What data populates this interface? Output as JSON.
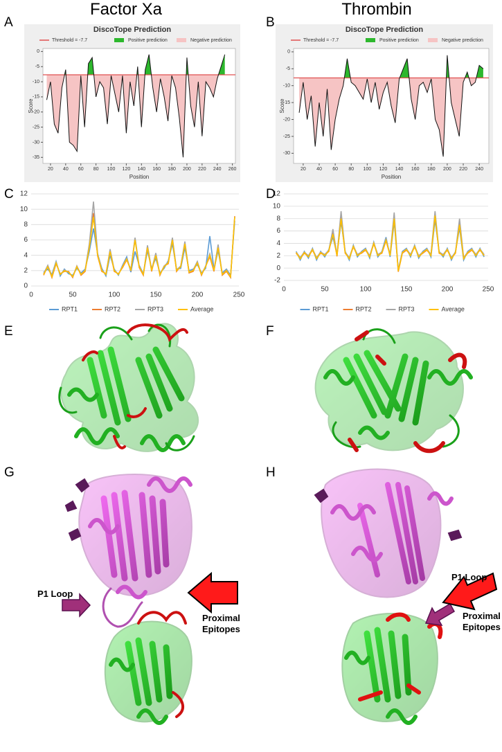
{
  "column_titles": [
    "Factor Xa",
    "Thrombin"
  ],
  "panel_labels": [
    "A",
    "B",
    "C",
    "D",
    "E",
    "F",
    "G",
    "H"
  ],
  "annotations": {
    "g_p1_loop": "P1 Loop",
    "g_epitopes": "Proximal Epitopes",
    "h_p1_loop": "P1 Loop",
    "h_epitopes": "Proximal Epitopes"
  },
  "chart_data": [
    {
      "type": "area",
      "title": "DiscoTope Prediction",
      "x_label": "Position",
      "y_label": "Score",
      "threshold": {
        "value": -7.7,
        "label": "Threshold = -7.7"
      },
      "threshold_color": "#e05050",
      "positive_label": "Positive prediction",
      "positive_color": "#2db82d",
      "negative_label": "Negative prediction",
      "negative_color": "#f6c4c4",
      "line_color": "#111111",
      "x": [
        15,
        20,
        25,
        30,
        35,
        40,
        45,
        50,
        55,
        60,
        65,
        70,
        75,
        80,
        85,
        90,
        95,
        100,
        105,
        110,
        115,
        120,
        125,
        130,
        135,
        140,
        145,
        150,
        155,
        160,
        165,
        170,
        175,
        180,
        185,
        190,
        195,
        200,
        205,
        210,
        215,
        220,
        225,
        230,
        235,
        240,
        245,
        250
      ],
      "values": [
        -16,
        -10,
        -24,
        -27,
        -12,
        -6,
        -30,
        -31,
        -33,
        -8,
        -25,
        -4,
        -2,
        -15,
        -10,
        -12,
        -24,
        -8,
        -14,
        -20,
        -8,
        -27,
        -10,
        -18,
        -5,
        -25,
        -6,
        -1,
        -12,
        -20,
        -9,
        -15,
        -23,
        -8,
        -12,
        -22,
        -35,
        -2,
        -18,
        -25,
        -10,
        -28,
        -10,
        -12,
        -15,
        -9,
        -5,
        -1
      ],
      "xlim": [
        10,
        264
      ],
      "xticks": [
        20,
        40,
        60,
        80,
        100,
        120,
        140,
        160,
        180,
        200,
        220,
        240,
        260
      ],
      "ylim": [
        -37,
        1
      ],
      "yticks": [
        0,
        -5,
        -10,
        -15,
        -20,
        -25,
        -30,
        -35
      ]
    },
    {
      "type": "area",
      "title": "DiscoTope Prediction",
      "x_label": "Position",
      "y_label": "Score",
      "threshold": {
        "value": -7.7,
        "label": "Threshold = -7.7"
      },
      "threshold_color": "#e05050",
      "positive_label": "Positive prediction",
      "positive_color": "#2db82d",
      "negative_label": "Negative prediction",
      "negative_color": "#f6c4c4",
      "line_color": "#111111",
      "x": [
        15,
        20,
        25,
        30,
        35,
        40,
        45,
        50,
        55,
        60,
        65,
        70,
        75,
        80,
        85,
        90,
        95,
        100,
        105,
        110,
        115,
        120,
        125,
        130,
        135,
        140,
        145,
        150,
        155,
        160,
        165,
        170,
        175,
        180,
        185,
        190,
        195,
        200,
        205,
        210,
        215,
        220,
        225,
        230,
        235,
        240,
        245
      ],
      "values": [
        -18,
        -9,
        -20,
        -13,
        -28,
        -15,
        -25,
        -11,
        -29,
        -20,
        -14,
        -10,
        -2,
        -9,
        -10,
        -12,
        -14,
        -8,
        -15,
        -9,
        -17,
        -12,
        -9,
        -16,
        -21,
        -8,
        -5,
        -2,
        -14,
        -20,
        -10,
        -9,
        -12,
        -8,
        -20,
        -23,
        -31,
        -1,
        -15,
        -20,
        -25,
        -9,
        -6,
        -10,
        -9,
        -4,
        -5
      ],
      "xlim": [
        8,
        252
      ],
      "xticks": [
        20,
        40,
        60,
        80,
        100,
        120,
        140,
        160,
        180,
        200,
        220,
        240
      ],
      "ylim": [
        -33,
        1
      ],
      "yticks": [
        0,
        -5,
        -10,
        -15,
        -20,
        -25,
        -30
      ]
    },
    {
      "type": "line",
      "grid": true,
      "x": [
        15,
        20,
        25,
        30,
        35,
        40,
        45,
        50,
        55,
        60,
        65,
        70,
        75,
        80,
        85,
        90,
        95,
        100,
        105,
        110,
        115,
        120,
        125,
        130,
        135,
        140,
        145,
        150,
        155,
        160,
        165,
        170,
        175,
        180,
        185,
        190,
        195,
        200,
        205,
        210,
        215,
        220,
        225,
        230,
        235,
        240,
        245
      ],
      "series": [
        {
          "name": "RPT1",
          "color": "#5b9bd5",
          "values": [
            1.8,
            2.2,
            1.5,
            3.2,
            1.3,
            2.2,
            1.6,
            1.4,
            2.3,
            1.7,
            2.2,
            4.5,
            7.5,
            4.2,
            2.3,
            1.3,
            4.0,
            2.2,
            1.4,
            2.7,
            3.8,
            1.8,
            4.5,
            2.7,
            1.6,
            4.6,
            2.3,
            3.6,
            1.7,
            2.3,
            3.3,
            5.5,
            2.2,
            2.3,
            5.0,
            2.0,
            2.2,
            2.8,
            1.7,
            2.3,
            6.5,
            2.2,
            4.6,
            1.7,
            2.2,
            1.4,
            8.5
          ]
        },
        {
          "name": "RPT2",
          "color": "#ed7d31",
          "values": [
            1.4,
            2.6,
            1.1,
            2.9,
            1.6,
            1.9,
            1.9,
            1.1,
            2.6,
            1.4,
            1.9,
            5.2,
            9.5,
            3.9,
            1.9,
            1.6,
            4.6,
            1.9,
            1.6,
            2.4,
            3.4,
            2.1,
            6.2,
            2.4,
            1.4,
            5.2,
            1.9,
            4.2,
            1.4,
            2.6,
            2.9,
            6.2,
            1.9,
            2.6,
            5.6,
            1.7,
            1.9,
            3.1,
            1.4,
            2.6,
            3.8,
            1.9,
            5.2,
            1.4,
            1.9,
            1.1,
            9.1
          ]
        },
        {
          "name": "RPT3",
          "color": "#a5a5a5",
          "values": [
            1.6,
            2.7,
            1.3,
            3.1,
            1.5,
            2.1,
            1.8,
            1.2,
            2.6,
            1.5,
            2.1,
            5.5,
            11.0,
            4.2,
            2.1,
            1.5,
            4.8,
            2.1,
            1.5,
            2.6,
            3.6,
            2.1,
            6.3,
            2.6,
            1.5,
            5.3,
            2.1,
            4.3,
            1.5,
            2.6,
            3.1,
            6.3,
            2.1,
            2.6,
            5.8,
            1.8,
            2.1,
            3.2,
            1.5,
            2.6,
            4.2,
            2.1,
            5.4,
            1.5,
            2.1,
            1.2,
            9.0
          ]
        },
        {
          "name": "Average",
          "color": "#ffc000",
          "values": [
            1.5,
            2.5,
            1.2,
            3.0,
            1.5,
            2.0,
            1.8,
            1.2,
            2.5,
            1.5,
            2.0,
            5.0,
            9.0,
            4.0,
            2.0,
            1.5,
            4.5,
            2.0,
            1.5,
            2.5,
            3.5,
            2.0,
            6.0,
            2.5,
            1.5,
            5.0,
            2.0,
            4.0,
            1.5,
            2.5,
            3.0,
            6.0,
            2.0,
            2.5,
            5.5,
            1.8,
            2.0,
            3.0,
            1.5,
            2.5,
            4.0,
            2.0,
            5.0,
            1.5,
            2.0,
            1.2,
            9.0
          ]
        }
      ],
      "xlim": [
        0,
        250
      ],
      "xticks": [
        0,
        50,
        100,
        150,
        200,
        250
      ],
      "ylim": [
        0,
        12
      ],
      "yticks": [
        0,
        2,
        4,
        6,
        8,
        10,
        12
      ]
    },
    {
      "type": "line",
      "grid": true,
      "x": [
        15,
        20,
        25,
        30,
        35,
        40,
        45,
        50,
        55,
        60,
        65,
        70,
        75,
        80,
        85,
        90,
        95,
        100,
        105,
        110,
        115,
        120,
        125,
        130,
        135,
        140,
        145,
        150,
        155,
        160,
        165,
        170,
        175,
        180,
        185,
        190,
        195,
        200,
        205,
        210,
        215,
        220,
        225,
        230,
        235,
        240,
        245
      ],
      "series": [
        {
          "name": "RPT1",
          "color": "#5b9bd5",
          "values": [
            2.7,
            1.3,
            2.7,
            1.6,
            3.2,
            1.3,
            2.7,
            1.8,
            3.0,
            5.0,
            2.2,
            7.5,
            2.7,
            1.3,
            3.7,
            1.8,
            2.7,
            3.2,
            1.6,
            4.2,
            1.8,
            2.7,
            5.0,
            1.8,
            7.5,
            -0.3,
            2.7,
            3.2,
            1.8,
            3.7,
            1.6,
            2.7,
            3.2,
            1.8,
            7.8,
            2.7,
            1.8,
            3.2,
            1.3,
            2.7,
            6.5,
            1.3,
            2.7,
            3.2,
            1.8,
            3.2,
            1.8
          ]
        },
        {
          "name": "RPT2",
          "color": "#ed7d31",
          "values": [
            2.4,
            1.6,
            2.4,
            1.9,
            2.9,
            1.6,
            2.4,
            2.1,
            2.7,
            5.7,
            1.9,
            8.2,
            2.4,
            1.6,
            3.4,
            2.1,
            2.4,
            2.9,
            1.9,
            3.9,
            2.1,
            2.4,
            4.4,
            2.1,
            8.2,
            -0.6,
            2.4,
            2.9,
            2.1,
            3.4,
            1.9,
            2.4,
            2.9,
            2.1,
            8.6,
            2.4,
            2.1,
            2.9,
            1.6,
            2.4,
            7.2,
            1.6,
            2.4,
            2.9,
            2.1,
            2.9,
            2.1
          ]
        },
        {
          "name": "RPT3",
          "color": "#a5a5a5",
          "values": [
            2.6,
            1.7,
            2.6,
            2.0,
            3.1,
            1.7,
            2.6,
            2.2,
            2.9,
            6.3,
            2.1,
            9.2,
            2.6,
            1.7,
            3.6,
            2.2,
            2.6,
            3.1,
            2.0,
            4.1,
            2.2,
            2.6,
            4.7,
            2.2,
            9.0,
            -0.4,
            2.6,
            3.1,
            2.2,
            3.6,
            2.0,
            2.6,
            3.1,
            2.2,
            9.2,
            2.6,
            2.2,
            3.1,
            1.7,
            2.6,
            8.0,
            1.7,
            2.6,
            3.1,
            2.2,
            3.1,
            2.2
          ]
        },
        {
          "name": "Average",
          "color": "#ffc000",
          "values": [
            2.5,
            1.5,
            2.5,
            1.8,
            3.0,
            1.5,
            2.5,
            2.0,
            2.8,
            5.5,
            2.0,
            8.0,
            2.5,
            1.5,
            3.5,
            2.0,
            2.5,
            3.0,
            1.8,
            4.0,
            2.0,
            2.5,
            4.5,
            2.0,
            8.0,
            -0.5,
            2.5,
            3.0,
            2.0,
            3.5,
            1.8,
            2.5,
            3.0,
            2.0,
            8.5,
            2.5,
            2.0,
            3.0,
            1.5,
            2.5,
            7.0,
            1.5,
            2.5,
            3.0,
            2.0,
            3.0,
            2.0
          ]
        }
      ],
      "xlim": [
        0,
        250
      ],
      "xticks": [
        0,
        50,
        100,
        150,
        200,
        250
      ],
      "ylim": [
        -2,
        12
      ],
      "yticks": [
        -2,
        0,
        2,
        4,
        6,
        8,
        10,
        12
      ]
    }
  ]
}
